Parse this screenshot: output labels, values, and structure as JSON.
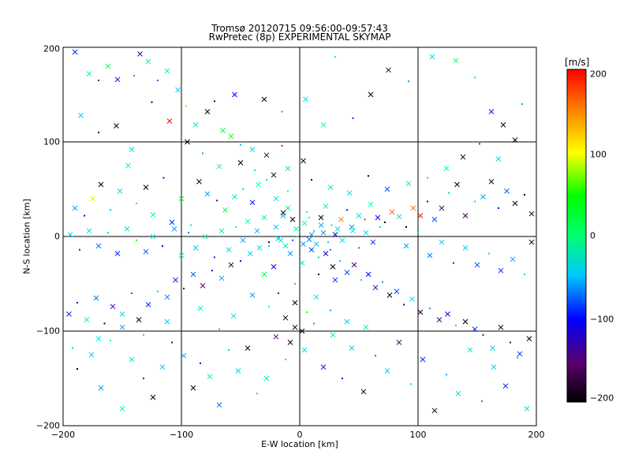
{
  "chart_data": {
    "type": "scatter",
    "title": "Tromsø 20120715 09:56:00-09:57:43",
    "subtitle": "RwPretec (8p) EXPERIMENTAL SKYMAP",
    "xlabel": "E-W location [km]",
    "ylabel": "N-S location [km]",
    "xlim": [
      -200,
      200
    ],
    "ylim": [
      -200,
      200
    ],
    "x_ticks": [
      -200,
      -100,
      0,
      100,
      200
    ],
    "y_ticks": [
      -200,
      -100,
      0,
      100,
      200
    ],
    "x_tick_labels": [
      "−200",
      "−100",
      "0",
      "100",
      "200"
    ],
    "y_tick_labels": [
      "−200",
      "−100",
      "0",
      "100",
      "200"
    ],
    "grid": true,
    "markers": "x (large) and dots (small)",
    "colorbar": {
      "label": "[m/s]",
      "range": [
        -200,
        200
      ],
      "ticks": [
        200,
        100,
        0,
        -100,
        -200
      ],
      "tick_labels": [
        "200",
        "100",
        "0",
        "−100",
        "−200"
      ],
      "colormap": [
        "#000000",
        "#5a0070",
        "#0000ff",
        "#00c8ff",
        "#00ffb0",
        "#00ff00",
        "#ffff00",
        "#ff8000",
        "#ff0000"
      ]
    },
    "points": [
      [
        -190,
        195,
        -90
      ],
      [
        -178,
        172,
        10
      ],
      [
        -170,
        165,
        -150
      ],
      [
        -162,
        180,
        20
      ],
      [
        -154,
        166,
        -110
      ],
      [
        -140,
        170,
        -60
      ],
      [
        -135,
        193,
        -130
      ],
      [
        -128,
        185,
        15
      ],
      [
        -120,
        165,
        -75
      ],
      [
        -112,
        175,
        5
      ],
      [
        -103,
        155,
        -40
      ],
      [
        -96,
        138,
        130
      ],
      [
        -88,
        118,
        -20
      ],
      [
        -78,
        132,
        -200
      ],
      [
        -72,
        143,
        -190
      ],
      [
        -65,
        112,
        30
      ],
      [
        -58,
        106,
        45
      ],
      [
        -50,
        97,
        -55
      ],
      [
        -40,
        92,
        -35
      ],
      [
        -28,
        86,
        -170
      ],
      [
        -15,
        96,
        200
      ],
      [
        3,
        80,
        -195
      ],
      [
        -190,
        30,
        -60
      ],
      [
        -182,
        22,
        -120
      ],
      [
        -175,
        40,
        90
      ],
      [
        -168,
        55,
        -200
      ],
      [
        -160,
        28,
        -50
      ],
      [
        -152,
        48,
        -30
      ],
      [
        -145,
        75,
        -10
      ],
      [
        -138,
        35,
        60
      ],
      [
        -130,
        52,
        -200
      ],
      [
        -124,
        23,
        10
      ],
      [
        -115,
        62,
        -110
      ],
      [
        -108,
        15,
        -90
      ],
      [
        -100,
        40,
        40
      ],
      [
        -92,
        12,
        -20
      ],
      [
        -85,
        58,
        -200
      ],
      [
        -78,
        45,
        -60
      ],
      [
        -70,
        38,
        -150
      ],
      [
        -63,
        28,
        25
      ],
      [
        -55,
        42,
        -20
      ],
      [
        -48,
        50,
        35
      ],
      [
        -40,
        36,
        -100
      ],
      [
        -35,
        55,
        0
      ],
      [
        -28,
        60,
        -30
      ],
      [
        -20,
        40,
        -20
      ],
      [
        -14,
        25,
        -190
      ],
      [
        -10,
        48,
        0
      ],
      [
        -6,
        18,
        -200
      ],
      [
        -3,
        8,
        15
      ],
      [
        0,
        5,
        -40
      ],
      [
        4,
        14,
        -10
      ],
      [
        8,
        -3,
        -70
      ],
      [
        12,
        6,
        -30
      ],
      [
        18,
        20,
        -200
      ],
      [
        22,
        32,
        0
      ],
      [
        27,
        12,
        -40
      ],
      [
        30,
        2,
        -100
      ],
      [
        35,
        18,
        150
      ],
      [
        40,
        28,
        -110
      ],
      [
        45,
        6,
        -20
      ],
      [
        50,
        22,
        -30
      ],
      [
        55,
        18,
        180
      ],
      [
        60,
        34,
        -10
      ],
      [
        66,
        20,
        -100
      ],
      [
        72,
        15,
        -200
      ],
      [
        78,
        26,
        165
      ],
      [
        84,
        21,
        -40
      ],
      [
        90,
        10,
        -190
      ],
      [
        96,
        30,
        155
      ],
      [
        102,
        22,
        190
      ],
      [
        108,
        37,
        -170
      ],
      [
        114,
        18,
        -80
      ],
      [
        120,
        30,
        -150
      ],
      [
        126,
        46,
        -40
      ],
      [
        133,
        55,
        -200
      ],
      [
        140,
        22,
        -170
      ],
      [
        148,
        37,
        -30
      ],
      [
        155,
        42,
        -60
      ],
      [
        162,
        58,
        -180
      ],
      [
        168,
        30,
        -120
      ],
      [
        175,
        48,
        -75
      ],
      [
        182,
        35,
        -200
      ],
      [
        190,
        44,
        -200
      ],
      [
        196,
        24,
        -200
      ],
      [
        -195,
        -82,
        -90
      ],
      [
        -188,
        -70,
        -120
      ],
      [
        -180,
        -88,
        10
      ],
      [
        -172,
        -65,
        -70
      ],
      [
        -165,
        -92,
        -200
      ],
      [
        -158,
        -74,
        -130
      ],
      [
        -150,
        -82,
        -45
      ],
      [
        -142,
        -60,
        -75
      ],
      [
        -136,
        -88,
        -200
      ],
      [
        -128,
        -72,
        -90
      ],
      [
        -120,
        -58,
        -30
      ],
      [
        -112,
        -64,
        -70
      ],
      [
        -105,
        -46,
        -110
      ],
      [
        -98,
        -55,
        -160
      ],
      [
        -90,
        -40,
        -75
      ],
      [
        -82,
        -52,
        -150
      ],
      [
        -74,
        -36,
        -120
      ],
      [
        -66,
        -44,
        -60
      ],
      [
        -58,
        -30,
        -170
      ],
      [
        -50,
        -26,
        -100
      ],
      [
        -42,
        -18,
        -45
      ],
      [
        -34,
        -12,
        -30
      ],
      [
        -26,
        -6,
        -200
      ],
      [
        -18,
        -2,
        -60
      ],
      [
        -12,
        -10,
        -20
      ],
      [
        -6,
        -4,
        -80
      ],
      [
        3,
        -8,
        -60
      ],
      [
        10,
        -14,
        -90
      ],
      [
        16,
        -22,
        -40
      ],
      [
        22,
        -18,
        -120
      ],
      [
        28,
        -32,
        -200
      ],
      [
        34,
        -26,
        -50
      ],
      [
        40,
        -38,
        -80
      ],
      [
        46,
        -30,
        -160
      ],
      [
        52,
        -46,
        -40
      ],
      [
        58,
        -40,
        -100
      ],
      [
        64,
        -54,
        -140
      ],
      [
        70,
        -48,
        -60
      ],
      [
        76,
        -62,
        -200
      ],
      [
        82,
        -58,
        -80
      ],
      [
        88,
        -72,
        -120
      ],
      [
        95,
        -66,
        -30
      ],
      [
        102,
        -80,
        -190
      ],
      [
        110,
        -76,
        -60
      ],
      [
        118,
        -88,
        -150
      ],
      [
        125,
        -82,
        -100
      ],
      [
        132,
        -94,
        -40
      ],
      [
        140,
        -90,
        -200
      ],
      [
        148,
        -98,
        -90
      ],
      [
        155,
        -104,
        -130
      ],
      [
        163,
        -118,
        -50
      ],
      [
        170,
        -96,
        -200
      ],
      [
        178,
        -112,
        -160
      ],
      [
        186,
        -124,
        -90
      ],
      [
        194,
        -108,
        -200
      ],
      [
        -188,
        -140,
        -200
      ],
      [
        -176,
        -125,
        -40
      ],
      [
        -168,
        -160,
        -60
      ],
      [
        -160,
        -110,
        -10
      ],
      [
        -150,
        -182,
        0
      ],
      [
        -142,
        -130,
        -20
      ],
      [
        -132,
        -150,
        -100
      ],
      [
        -124,
        -170,
        -200
      ],
      [
        -116,
        -138,
        -40
      ],
      [
        -108,
        -112,
        -150
      ],
      [
        -98,
        -126,
        -60
      ],
      [
        -90,
        -160,
        -200
      ],
      [
        -84,
        -134,
        -110
      ],
      [
        -76,
        -148,
        5
      ],
      [
        -68,
        -178,
        -70
      ],
      [
        -60,
        -120,
        -30
      ],
      [
        -52,
        -142,
        -40
      ],
      [
        -44,
        -118,
        -200
      ],
      [
        -36,
        -166,
        40
      ],
      [
        -28,
        -150,
        -10
      ],
      [
        -20,
        -106,
        -150
      ],
      [
        -12,
        -130,
        -50
      ],
      [
        -4,
        -96,
        -200
      ],
      [
        4,
        -120,
        -30
      ],
      [
        12,
        -92,
        -60
      ],
      [
        20,
        -138,
        -90
      ],
      [
        28,
        -104,
        -20
      ],
      [
        36,
        -150,
        -100
      ],
      [
        44,
        -118,
        -40
      ],
      [
        54,
        -164,
        -200
      ],
      [
        64,
        -126,
        -70
      ],
      [
        74,
        -142,
        -40
      ],
      [
        84,
        -112,
        -150
      ],
      [
        94,
        -156,
        -30
      ],
      [
        104,
        -130,
        -90
      ],
      [
        114,
        -184,
        -200
      ],
      [
        124,
        -146,
        -60
      ],
      [
        134,
        -166,
        -40
      ],
      [
        144,
        -120,
        -20
      ],
      [
        154,
        -174,
        -70
      ],
      [
        164,
        -138,
        -40
      ],
      [
        174,
        -158,
        -90
      ],
      [
        184,
        -128,
        -60
      ],
      [
        192,
        -182,
        -30
      ],
      [
        -185,
        128,
        -45
      ],
      [
        -170,
        110,
        -200
      ],
      [
        -155,
        117,
        -200
      ],
      [
        -142,
        92,
        -30
      ],
      [
        -125,
        142,
        -200
      ],
      [
        -110,
        122,
        200
      ],
      [
        -95,
        100,
        -200
      ],
      [
        -82,
        88,
        -60
      ],
      [
        -68,
        74,
        -10
      ],
      [
        -50,
        78,
        -200
      ],
      [
        -38,
        70,
        -40
      ],
      [
        -22,
        65,
        -170
      ],
      [
        -10,
        72,
        -20
      ],
      [
        10,
        60,
        -200
      ],
      [
        26,
        52,
        -10
      ],
      [
        42,
        46,
        -30
      ],
      [
        58,
        64,
        -200
      ],
      [
        74,
        50,
        -80
      ],
      [
        92,
        56,
        -20
      ],
      [
        108,
        62,
        -40
      ],
      [
        124,
        72,
        10
      ],
      [
        138,
        84,
        -200
      ],
      [
        152,
        98,
        -80
      ],
      [
        168,
        82,
        -30
      ],
      [
        182,
        102,
        -200
      ],
      [
        30,
        190,
        -10
      ],
      [
        60,
        150,
        -200
      ],
      [
        75,
        176,
        -180
      ],
      [
        92,
        164,
        -60
      ],
      [
        112,
        190,
        -30
      ],
      [
        132,
        186,
        20
      ],
      [
        148,
        168,
        -30
      ],
      [
        162,
        132,
        -90
      ],
      [
        172,
        118,
        -200
      ],
      [
        188,
        140,
        -60
      ],
      [
        -55,
        150,
        -100
      ],
      [
        -30,
        145,
        -200
      ],
      [
        -15,
        132,
        -60
      ],
      [
        5,
        145,
        -20
      ],
      [
        20,
        118,
        0
      ],
      [
        45,
        125,
        -90
      ],
      [
        -14,
        22,
        -55
      ],
      [
        -8,
        -18,
        -60
      ],
      [
        6,
        26,
        -5
      ],
      [
        14,
        -8,
        -45
      ],
      [
        20,
        4,
        -65
      ],
      [
        26,
        -14,
        -70
      ],
      [
        32,
        8,
        -25
      ],
      [
        -20,
        10,
        -50
      ],
      [
        -26,
        -10,
        -40
      ],
      [
        -30,
        20,
        -15
      ],
      [
        18,
        12,
        -55
      ],
      [
        -2,
        0,
        -35
      ],
      [
        10,
        2,
        -60
      ],
      [
        -16,
        -4,
        -25
      ],
      [
        24,
        -6,
        -50
      ],
      [
        36,
        -4,
        -40
      ],
      [
        -36,
        6,
        -55
      ],
      [
        8,
        20,
        0
      ],
      [
        -10,
        30,
        30
      ],
      [
        2,
        -28,
        -20
      ],
      [
        16,
        -40,
        -200
      ],
      [
        -22,
        -32,
        -100
      ],
      [
        30,
        -46,
        -90
      ],
      [
        -4,
        -50,
        150
      ],
      [
        -30,
        -40,
        20
      ],
      [
        44,
        10,
        -60
      ],
      [
        50,
        -12,
        -70
      ],
      [
        56,
        4,
        -45
      ],
      [
        62,
        -6,
        -90
      ],
      [
        68,
        10,
        -30
      ],
      [
        -44,
        16,
        -10
      ],
      [
        -48,
        -4,
        -60
      ],
      [
        -54,
        10,
        20
      ],
      [
        -60,
        -14,
        -40
      ],
      [
        -66,
        6,
        -20
      ],
      [
        -72,
        -22,
        -90
      ],
      [
        -80,
        0,
        10
      ],
      [
        -88,
        -12,
        -50
      ],
      [
        -94,
        4,
        -70
      ],
      [
        -100,
        -20,
        -30
      ],
      [
        -106,
        8,
        -60
      ],
      [
        -116,
        -10,
        -100
      ],
      [
        -124,
        0,
        -20
      ],
      [
        -130,
        -16,
        -80
      ],
      [
        -138,
        -4,
        40
      ],
      [
        -146,
        8,
        -30
      ],
      [
        -154,
        -18,
        -90
      ],
      [
        -162,
        4,
        -50
      ],
      [
        -170,
        -10,
        -70
      ],
      [
        -178,
        6,
        -30
      ],
      [
        -186,
        -14,
        -90
      ],
      [
        -194,
        2,
        -40
      ],
      [
        90,
        -10,
        -60
      ],
      [
        100,
        4,
        -30
      ],
      [
        110,
        -20,
        -70
      ],
      [
        120,
        -6,
        -50
      ],
      [
        130,
        -28,
        -90
      ],
      [
        140,
        -12,
        -40
      ],
      [
        150,
        -30,
        -80
      ],
      [
        160,
        -18,
        -30
      ],
      [
        170,
        -36,
        -90
      ],
      [
        180,
        -24,
        -60
      ],
      [
        190,
        -40,
        -40
      ],
      [
        196,
        -6,
        -200
      ],
      [
        -4,
        -70,
        -200
      ],
      [
        6,
        -80,
        60
      ],
      [
        -12,
        -86,
        -200
      ],
      [
        14,
        -64,
        -30
      ],
      [
        -18,
        -60,
        -150
      ],
      [
        2,
        -100,
        -200
      ],
      [
        -8,
        -112,
        -200
      ],
      [
        26,
        -78,
        -60
      ],
      [
        40,
        -90,
        -40
      ],
      [
        56,
        -96,
        -20
      ],
      [
        -26,
        -74,
        -10
      ],
      [
        -40,
        -62,
        -60
      ],
      [
        -56,
        -84,
        -30
      ],
      [
        -68,
        -98,
        -50
      ],
      [
        -84,
        -76,
        -20
      ],
      [
        -112,
        -90,
        -40
      ],
      [
        -132,
        -104,
        -30
      ],
      [
        -150,
        -96,
        -60
      ],
      [
        -170,
        -108,
        -20
      ],
      [
        -192,
        -118,
        -40
      ]
    ]
  }
}
